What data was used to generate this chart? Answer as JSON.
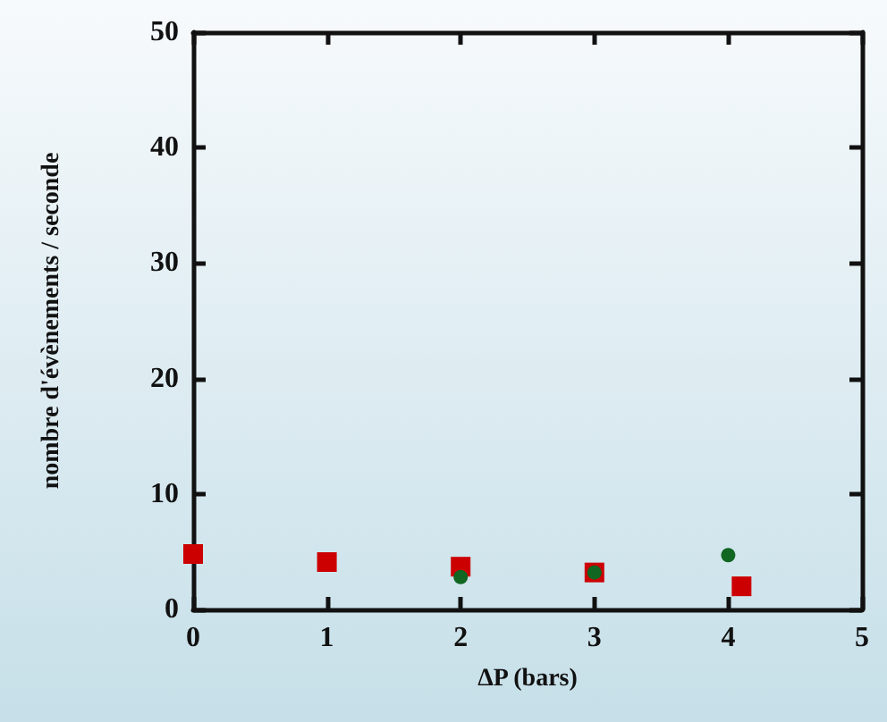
{
  "chart_data": {
    "type": "scatter",
    "xlabel": "ΔP (bars)",
    "ylabel": "nombre d'évènements / seconde",
    "xlim": [
      0,
      5
    ],
    "xticks": [
      0,
      1,
      2,
      3,
      4,
      5
    ],
    "ylim": [
      0,
      50
    ],
    "yticks": [
      0,
      10,
      20,
      30,
      40,
      50
    ],
    "grid": false,
    "series": [
      {
        "color": "#cc0000",
        "marker": "square",
        "x": [
          0,
          1,
          2,
          3,
          4.1
        ],
        "values": [
          4.8,
          4.1,
          3.7,
          3.2,
          2.0
        ]
      },
      {
        "color": "#116622",
        "marker": "circle",
        "x": [
          2,
          3,
          4
        ],
        "values": [
          2.8,
          3.2,
          4.7
        ]
      }
    ]
  }
}
